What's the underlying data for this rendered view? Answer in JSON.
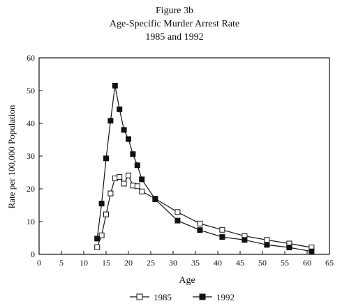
{
  "chart_data": {
    "type": "line",
    "title": "Figure 3b",
    "subtitle": "Age-Specific Murder Arrest Rate",
    "subtitle2": "1985 and 1992",
    "xlabel": "Age",
    "ylabel": "Rate per 100,000 Population",
    "xlim": [
      0,
      65
    ],
    "ylim": [
      0,
      60
    ],
    "xticks": [
      0,
      5,
      10,
      15,
      20,
      25,
      30,
      35,
      40,
      45,
      50,
      55,
      60,
      65
    ],
    "yticks": [
      0,
      10,
      20,
      30,
      40,
      50,
      60
    ],
    "grid": false,
    "legend": "bottom",
    "series": [
      {
        "name": "1985",
        "marker": "open-square",
        "x": [
          13,
          14,
          15,
          16,
          17,
          18,
          19,
          20,
          21,
          22,
          23,
          26,
          31,
          36,
          41,
          46,
          51,
          56,
          61
        ],
        "y": [
          2.2,
          5.8,
          12.2,
          18.6,
          23.2,
          23.6,
          21.6,
          24.1,
          21.0,
          20.8,
          19.2,
          17.0,
          12.9,
          9.4,
          7.5,
          5.6,
          4.4,
          3.3,
          2.1
        ]
      },
      {
        "name": "1992",
        "marker": "filled-square",
        "x": [
          13,
          14,
          15,
          16,
          17,
          18,
          19,
          20,
          21,
          22,
          23,
          26,
          31,
          36,
          41,
          46,
          51,
          56,
          61
        ],
        "y": [
          4.8,
          15.5,
          29.3,
          40.8,
          51.5,
          44.3,
          38.0,
          35.2,
          30.6,
          27.2,
          22.9,
          16.8,
          10.3,
          7.4,
          5.3,
          4.4,
          2.9,
          2.1,
          0.9
        ]
      }
    ]
  }
}
